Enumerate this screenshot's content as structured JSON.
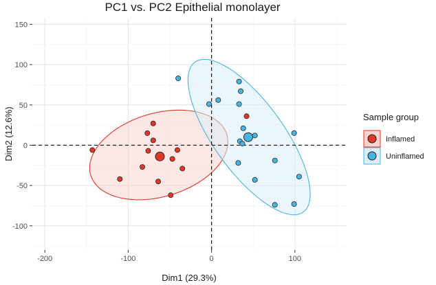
{
  "chart_data": {
    "type": "scatter",
    "title": "PC1 vs. PC2 Epithelial monolayer",
    "xlabel": "Dim1 (29.3%)",
    "ylabel": "Dim2 (12.6%)",
    "xlim": [
      -215,
      162
    ],
    "ylim": [
      -130,
      158
    ],
    "xticks": [
      -200,
      -100,
      0,
      100
    ],
    "yticks": [
      -100,
      -50,
      0,
      50,
      100,
      150
    ],
    "grid": true,
    "reference_lines": {
      "x": 0,
      "y": 0
    },
    "legend_title": "Sample group",
    "legend_position": "right",
    "series": [
      {
        "name": "Inflamed",
        "color": "#dc3a26",
        "ellipse_fill": "#f8d3d0",
        "points": [
          {
            "x": -143,
            "y": -6
          },
          {
            "x": -110,
            "y": -42
          },
          {
            "x": -83,
            "y": -27
          },
          {
            "x": -77,
            "y": 15
          },
          {
            "x": -76,
            "y": -7
          },
          {
            "x": -70,
            "y": 27
          },
          {
            "x": -70,
            "y": 6
          },
          {
            "x": -64,
            "y": -45
          },
          {
            "x": -49,
            "y": -62
          },
          {
            "x": -47,
            "y": -17
          },
          {
            "x": -41,
            "y": -6
          },
          {
            "x": -35,
            "y": -29
          },
          {
            "x": 42,
            "y": 36
          }
        ],
        "centroid": {
          "x": -62,
          "y": -14
        }
      },
      {
        "name": "Uninflamed",
        "color": "#49b4dc",
        "ellipse_fill": "#dbeef8",
        "points": [
          {
            "x": -40,
            "y": 83
          },
          {
            "x": -3,
            "y": 51
          },
          {
            "x": 8,
            "y": 56
          },
          {
            "x": 33,
            "y": 79
          },
          {
            "x": 35,
            "y": 67
          },
          {
            "x": 33,
            "y": 51
          },
          {
            "x": 38,
            "y": 21
          },
          {
            "x": 34,
            "y": 5
          },
          {
            "x": 37,
            "y": 2
          },
          {
            "x": 52,
            "y": 12
          },
          {
            "x": 32,
            "y": -22
          },
          {
            "x": 52,
            "y": -43
          },
          {
            "x": 76,
            "y": -19
          },
          {
            "x": 99,
            "y": 15
          },
          {
            "x": 105,
            "y": -39
          },
          {
            "x": 76,
            "y": -74
          },
          {
            "x": 99,
            "y": -73
          }
        ],
        "centroid": {
          "x": 44,
          "y": 10
        }
      }
    ]
  }
}
